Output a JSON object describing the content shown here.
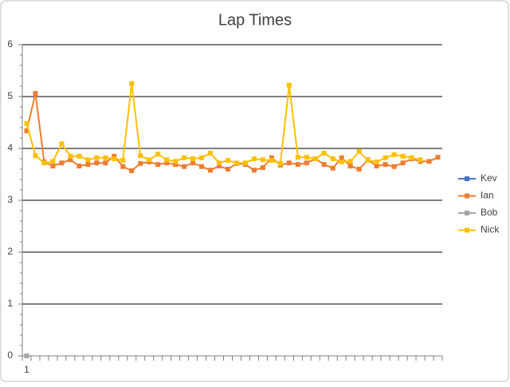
{
  "chart_data": {
    "type": "line",
    "title": "Lap Times",
    "categories": [
      "1",
      null,
      null,
      null,
      null,
      null,
      null,
      null,
      null,
      null,
      null,
      null,
      null,
      null,
      null,
      null,
      null,
      null,
      null,
      null,
      null,
      null,
      null,
      null,
      null,
      null,
      null,
      null,
      null,
      null,
      null,
      null,
      null,
      null,
      null,
      null,
      null,
      null,
      null,
      null,
      null,
      null,
      null,
      null,
      null,
      null,
      null,
      null
    ],
    "ylim": [
      0,
      6
    ],
    "yticks": [
      0,
      1,
      2,
      3,
      4,
      5,
      6
    ],
    "grid": true,
    "legend": "right",
    "series": [
      {
        "name": "Kev",
        "color": "#4472c4",
        "values": [
          null,
          null,
          null,
          null,
          null,
          null,
          null,
          null,
          null,
          null,
          null,
          null,
          null,
          null,
          null,
          null,
          null,
          null,
          null,
          null,
          null,
          null,
          null,
          null,
          null,
          null,
          null,
          null,
          null,
          null,
          null,
          null,
          null,
          null,
          null,
          null,
          null,
          null,
          null,
          null,
          null,
          null,
          null,
          null,
          null,
          null,
          null,
          null
        ]
      },
      {
        "name": "Ian",
        "color": "#ed7d31",
        "values": [
          4.34,
          5.06,
          3.74,
          3.66,
          3.72,
          3.78,
          3.66,
          3.69,
          3.72,
          3.72,
          3.85,
          3.65,
          3.57,
          3.71,
          3.74,
          3.69,
          3.72,
          3.69,
          3.65,
          3.72,
          3.65,
          3.58,
          3.66,
          3.6,
          3.71,
          3.69,
          3.58,
          3.63,
          3.82,
          3.68,
          3.72,
          3.69,
          3.72,
          3.8,
          3.69,
          3.62,
          3.82,
          3.66,
          3.6,
          3.78,
          3.66,
          3.69,
          3.65,
          3.72,
          3.8,
          3.75,
          3.75,
          3.83
        ]
      },
      {
        "name": "Bob",
        "color": "#a5a5a5",
        "values": [
          0,
          null,
          null,
          null,
          null,
          null,
          null,
          null,
          null,
          null,
          null,
          null,
          null,
          null,
          null,
          null,
          null,
          null,
          null,
          null,
          null,
          null,
          null,
          null,
          null,
          null,
          null,
          null,
          null,
          null,
          null,
          null,
          null,
          null,
          null,
          null,
          null,
          null,
          null,
          null,
          null,
          null,
          null,
          null,
          null,
          null,
          null,
          null
        ]
      },
      {
        "name": "Nick",
        "color": "#ffc000",
        "values": [
          4.48,
          3.86,
          3.72,
          3.75,
          4.09,
          3.85,
          3.85,
          3.78,
          3.82,
          3.82,
          3.8,
          3.77,
          5.25,
          3.86,
          3.78,
          3.89,
          3.78,
          3.75,
          3.82,
          3.8,
          3.82,
          3.91,
          3.72,
          3.77,
          3.72,
          3.72,
          3.8,
          3.78,
          3.77,
          3.71,
          5.22,
          3.83,
          3.83,
          3.8,
          3.91,
          3.8,
          3.74,
          3.75,
          3.94,
          3.77,
          3.74,
          3.82,
          3.88,
          3.85,
          3.82,
          3.78,
          null,
          null
        ]
      }
    ]
  }
}
